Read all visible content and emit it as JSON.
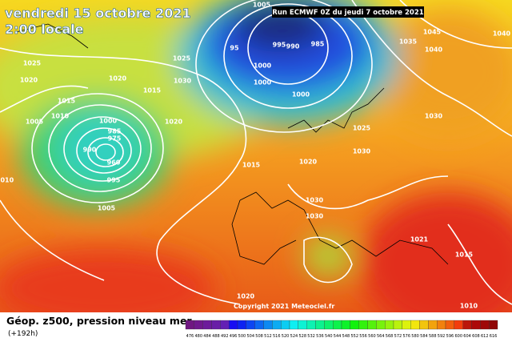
{
  "header": {
    "date": "vendredi 15 octobre 2021",
    "time": "2:00 locale",
    "run": "Run ECMWF 0Z du jeudi 7 octobre 2021"
  },
  "isobar_labels": [
    1005,
    995,
    990,
    985,
    95,
    1000,
    1000,
    1000,
    1025,
    1025,
    1020,
    1020,
    1015,
    1030,
    1015,
    1010,
    1005,
    1000,
    985,
    975,
    990,
    960,
    995,
    1005,
    1020,
    1025,
    1030,
    1015,
    1020,
    1030,
    1030,
    1035,
    1045,
    1040,
    1040,
    1030,
    1021,
    1015,
    1020,
    1010,
    1010
  ],
  "copyright": "Copyright 2021 Meteociel.fr",
  "footer": {
    "title": "Géop. z500, pression niveau mer",
    "lead": "(+192h)"
  },
  "scale": {
    "ticks": [
      476,
      480,
      484,
      488,
      492,
      496,
      500,
      504,
      508,
      512,
      516,
      520,
      524,
      528,
      532,
      536,
      540,
      544,
      548,
      552,
      556,
      560,
      564,
      568,
      572,
      576,
      580,
      584,
      588,
      592,
      596,
      600,
      604,
      608,
      612,
      616
    ]
  }
}
